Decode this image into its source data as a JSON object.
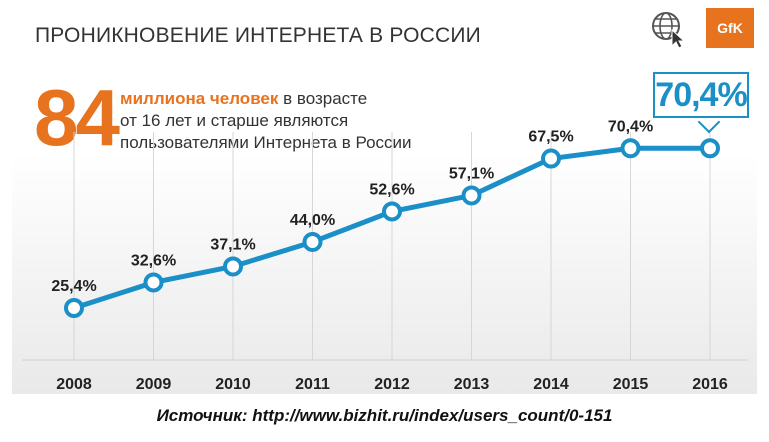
{
  "header": {
    "title": "ПРОНИКНОВЕНИЕ ИНТЕРНЕТА В РОССИИ",
    "logo_text": "GfK",
    "icon": "globe-cursor-icon"
  },
  "highlight": {
    "number": "84",
    "lead": "миллиона человек",
    "line1_rest": " в возрасте",
    "line2": "от 16 лет и старше являются",
    "line3": "пользователями Интернета в России"
  },
  "callout": {
    "value": "70,4%"
  },
  "footer": {
    "source": "Источник: http://www.bizhit.ru/index/users_count/0-151"
  },
  "colors": {
    "accent_orange": "#e8731e",
    "line_blue": "#1b8fc7"
  },
  "chart_data": {
    "type": "line",
    "title": "ПРОНИКНОВЕНИЕ ИНТЕРНЕТА В РОССИИ",
    "categories": [
      "2008",
      "2009",
      "2010",
      "2011",
      "2012",
      "2013",
      "2014",
      "2015",
      "2016"
    ],
    "values": [
      25.4,
      32.6,
      37.1,
      44.0,
      52.6,
      57.1,
      67.5,
      70.4,
      70.4
    ],
    "labels": [
      "25,4%",
      "32,6%",
      "37,1%",
      "44,0%",
      "52,6%",
      "57,1%",
      "67,5%",
      "70,4%",
      ""
    ],
    "unit": "%",
    "grid": "vertical",
    "legend": "none"
  }
}
